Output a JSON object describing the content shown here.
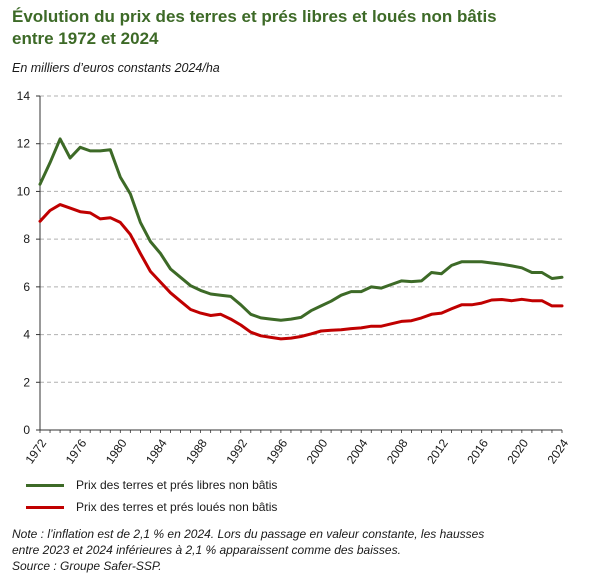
{
  "header": {
    "title_line1": "Évolution du prix des terres et prés libres et loués non bâtis",
    "title_line2": "entre 1972 et 2024",
    "subtitle": "En milliers d’euros constants 2024/ha"
  },
  "colors": {
    "series_libres": "#3d6a27",
    "series_loues": "#c00000",
    "grid": "#b0b0b0",
    "axis": "#333333"
  },
  "legend": [
    {
      "label": "Prix des terres et prés libres non bâtis"
    },
    {
      "label": "Prix des terres et prés loués non bâtis"
    }
  ],
  "note": {
    "line1": "Note : l’inflation est de 2,1 % en 2024. Lors du passage en valeur constante, les hausses",
    "line2": "entre 2023 et 2024 inférieures à 2,1 % apparaissent comme des baisses.",
    "line3": "Source : Groupe Safer-SSP."
  },
  "chart_data": {
    "type": "line",
    "x": [
      1972,
      1973,
      1974,
      1975,
      1976,
      1977,
      1978,
      1979,
      1980,
      1981,
      1982,
      1983,
      1984,
      1985,
      1986,
      1987,
      1988,
      1989,
      1990,
      1991,
      1992,
      1993,
      1994,
      1995,
      1996,
      1997,
      1998,
      1999,
      2000,
      2001,
      2002,
      2003,
      2004,
      2005,
      2006,
      2007,
      2008,
      2009,
      2010,
      2011,
      2012,
      2013,
      2014,
      2015,
      2016,
      2017,
      2018,
      2019,
      2020,
      2021,
      2022,
      2023,
      2024
    ],
    "series": [
      {
        "name": "Prix des terres et prés libres non bâtis",
        "values": [
          10.3,
          11.2,
          12.2,
          11.4,
          11.85,
          11.7,
          11.7,
          11.75,
          10.6,
          9.9,
          8.7,
          7.9,
          7.4,
          6.75,
          6.4,
          6.05,
          5.85,
          5.7,
          5.65,
          5.6,
          5.25,
          4.85,
          4.7,
          4.65,
          4.6,
          4.65,
          4.72,
          5.0,
          5.2,
          5.4,
          5.65,
          5.8,
          5.8,
          6.0,
          5.95,
          6.1,
          6.25,
          6.22,
          6.25,
          6.6,
          6.55,
          6.9,
          7.05,
          7.05,
          7.05,
          7.0,
          6.95,
          6.88,
          6.8,
          6.6,
          6.6,
          6.35,
          6.4
        ]
      },
      {
        "name": "Prix des terres et prés loués non bâtis",
        "values": [
          8.75,
          9.2,
          9.45,
          9.3,
          9.15,
          9.1,
          8.85,
          8.9,
          8.7,
          8.2,
          7.4,
          6.65,
          6.2,
          5.75,
          5.4,
          5.05,
          4.9,
          4.8,
          4.85,
          4.65,
          4.4,
          4.1,
          3.95,
          3.88,
          3.82,
          3.85,
          3.92,
          4.03,
          4.15,
          4.18,
          4.2,
          4.25,
          4.28,
          4.35,
          4.35,
          4.45,
          4.55,
          4.58,
          4.7,
          4.85,
          4.9,
          5.08,
          5.25,
          5.25,
          5.32,
          5.45,
          5.47,
          5.42,
          5.48,
          5.42,
          5.42,
          5.2,
          5.2
        ]
      }
    ],
    "x_ticks": [
      1972,
      1976,
      1980,
      1984,
      1988,
      1992,
      1996,
      2000,
      2004,
      2008,
      2012,
      2016,
      2020,
      2024
    ],
    "y_ticks": [
      0,
      2,
      4,
      6,
      8,
      10,
      12,
      14
    ],
    "xlim": [
      1972,
      2024
    ],
    "ylim": [
      0,
      14
    ],
    "grid": "horizontal dashed"
  }
}
